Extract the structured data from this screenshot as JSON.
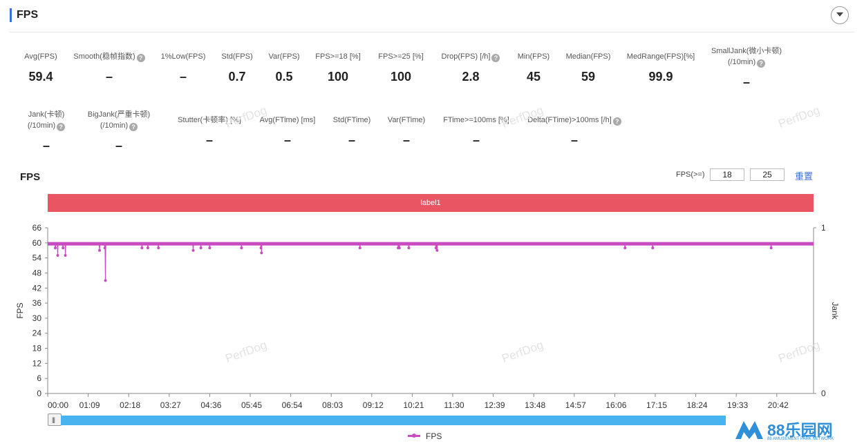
{
  "panel": {
    "title": "FPS"
  },
  "metrics": [
    {
      "label": "Avg(FPS)",
      "value": "59.4",
      "help": false
    },
    {
      "label": "Smooth(稳帧指数)",
      "value": "–",
      "help": true
    },
    {
      "label": "1%Low(FPS)",
      "value": "–",
      "help": false
    },
    {
      "label": "Std(FPS)",
      "value": "0.7",
      "help": false
    },
    {
      "label": "Var(FPS)",
      "value": "0.5",
      "help": false
    },
    {
      "label": "FPS>=18 [%]",
      "value": "100",
      "help": false
    },
    {
      "label": "FPS>=25 [%]",
      "value": "100",
      "help": false
    },
    {
      "label": "Drop(FPS) [/h]",
      "value": "2.8",
      "help": true
    },
    {
      "label": "Min(FPS)",
      "value": "45",
      "help": false
    },
    {
      "label": "Median(FPS)",
      "value": "59",
      "help": false
    },
    {
      "label": "MedRange(FPS)[%]",
      "value": "99.9",
      "help": false
    },
    {
      "label": "SmallJank(微小卡顿)",
      "label2": "(/10min)",
      "value": "–",
      "help": true
    },
    {
      "label": "Jank(卡顿)",
      "label2": "(/10min)",
      "value": "–",
      "help": true
    },
    {
      "label": "BigJank(严重卡顿)",
      "label2": "(/10min)",
      "value": "–",
      "help": true
    },
    {
      "label": "Stutter(卡顿率) [%]",
      "value": "–",
      "help": false
    },
    {
      "label": "Avg(FTime) [ms]",
      "value": "–",
      "help": false
    },
    {
      "label": "Std(FTime)",
      "value": "–",
      "help": false
    },
    {
      "label": "Var(FTime)",
      "value": "–",
      "help": false
    },
    {
      "label": "FTime>=100ms [%]",
      "value": "–",
      "help": false
    },
    {
      "label": "Delta(FTime)>100ms [/h]",
      "value": "–",
      "help": true
    }
  ],
  "chart_header": {
    "title": "FPS",
    "threshold_label": "FPS(>=)",
    "threshold1": "18",
    "threshold2": "25",
    "reset_label": "重置"
  },
  "label_banner": "label1",
  "watermark_text": "PerfDog",
  "logo": {
    "name": "88乐园网",
    "sub": "88 AMUSEMENT PARK NETWORK"
  },
  "legend_label": "FPS",
  "colors": {
    "series": "#c94bc0",
    "banner": "#ea5564",
    "slider": "#47b3ef",
    "accent": "#3b6fd6"
  },
  "chart_data": {
    "type": "line",
    "ylabel": "FPS",
    "y2label": "Jank",
    "ylim": [
      0,
      66
    ],
    "yticks": [
      0,
      6,
      12,
      18,
      24,
      30,
      36,
      42,
      48,
      54,
      60,
      66
    ],
    "y2ticks": [
      "0",
      "1"
    ],
    "xticks": [
      "00:00",
      "01:09",
      "02:18",
      "03:27",
      "04:36",
      "05:45",
      "06:54",
      "08:03",
      "09:12",
      "10:21",
      "11:30",
      "12:39",
      "13:48",
      "14:57",
      "16:06",
      "17:15",
      "18:24",
      "19:33",
      "20:42"
    ],
    "xlim_seconds": [
      0,
      1300
    ],
    "series": [
      {
        "name": "FPS",
        "baseline": 59.5,
        "dips": [
          {
            "t": 13,
            "fps": 58
          },
          {
            "t": 17,
            "fps": 55
          },
          {
            "t": 26,
            "fps": 58
          },
          {
            "t": 30,
            "fps": 55
          },
          {
            "t": 88,
            "fps": 57
          },
          {
            "t": 97,
            "fps": 58
          },
          {
            "t": 98,
            "fps": 45
          },
          {
            "t": 160,
            "fps": 58
          },
          {
            "t": 170,
            "fps": 58
          },
          {
            "t": 188,
            "fps": 58
          },
          {
            "t": 247,
            "fps": 57
          },
          {
            "t": 260,
            "fps": 58
          },
          {
            "t": 275,
            "fps": 58
          },
          {
            "t": 329,
            "fps": 58
          },
          {
            "t": 362,
            "fps": 58
          },
          {
            "t": 363,
            "fps": 56
          },
          {
            "t": 530,
            "fps": 58
          },
          {
            "t": 595,
            "fps": 58
          },
          {
            "t": 597,
            "fps": 58
          },
          {
            "t": 613,
            "fps": 58
          },
          {
            "t": 659,
            "fps": 58
          },
          {
            "t": 661,
            "fps": 57
          },
          {
            "t": 980,
            "fps": 58
          },
          {
            "t": 1027,
            "fps": 58
          },
          {
            "t": 1228,
            "fps": 58
          }
        ]
      }
    ]
  }
}
